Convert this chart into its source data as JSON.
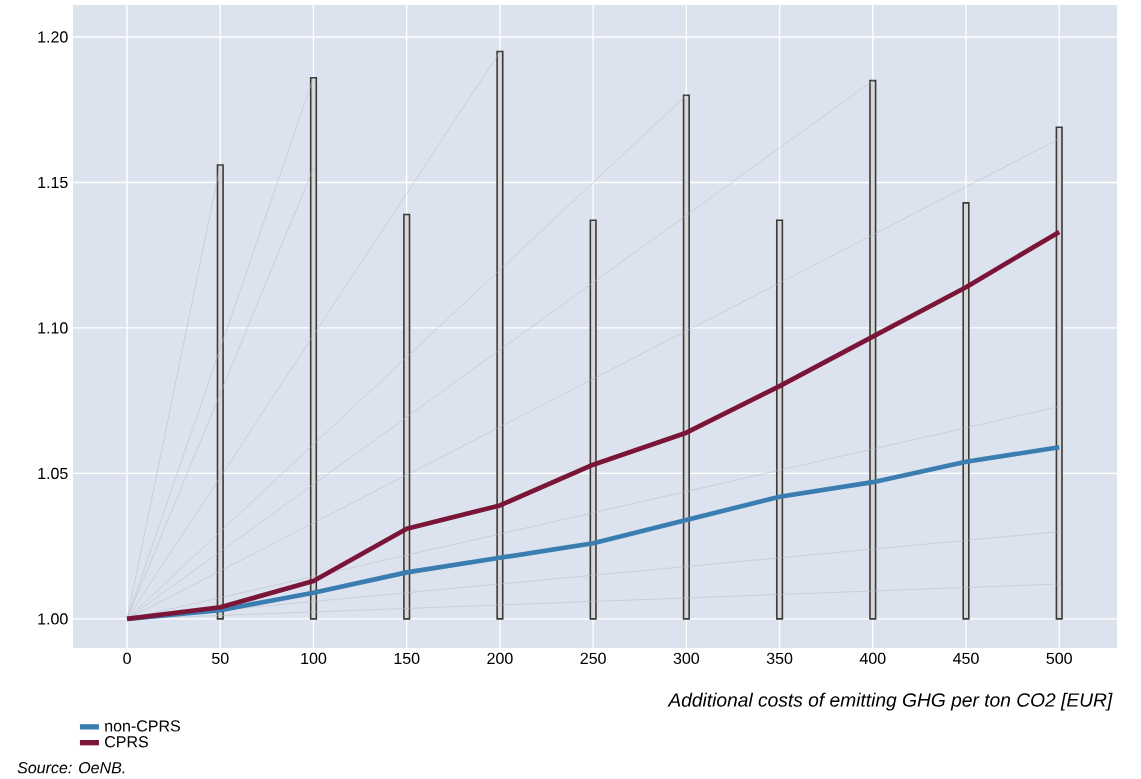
{
  "chart_data": {
    "type": "line",
    "xlabel": "Additional costs of emitting GHG per ton CO2 [EUR]",
    "annotations": [
      "Source: OeNB."
    ],
    "xlim": [
      -29,
      531
    ],
    "ylim": [
      0.99,
      1.211
    ],
    "xticks": [
      0,
      50,
      100,
      150,
      200,
      250,
      300,
      350,
      400,
      450,
      500
    ],
    "yticks": [
      {
        "value": 1.0,
        "label": "1.00"
      },
      {
        "value": 1.05,
        "label": "1.05"
      },
      {
        "value": 1.1,
        "label": "1.10"
      },
      {
        "value": 1.15,
        "label": "1.15"
      },
      {
        "value": 1.2,
        "label": "1.20"
      }
    ],
    "grid": true,
    "legend": "bottom left",
    "series": [
      {
        "type": "bar",
        "color": "#3a3a3a",
        "x": [
          50,
          100,
          150,
          200,
          250,
          300,
          350,
          400,
          450,
          500
        ],
        "base": [
          1.0,
          1.0,
          1.0,
          1.0,
          1.0,
          1.0,
          1.0,
          1.0,
          1.0,
          1.0
        ],
        "values": [
          0.156,
          0.186,
          0.139,
          0.195,
          0.137,
          0.18,
          0.137,
          0.185,
          0.143,
          0.169
        ]
      },
      {
        "color": "#b8bcc4",
        "x": [
          0,
          50
        ],
        "values": [
          1.0,
          1.156
        ]
      },
      {
        "color": "#b8bcc4",
        "x": [
          0,
          100
        ],
        "values": [
          1.0,
          1.186
        ]
      },
      {
        "color": "#b8bcc4",
        "x": [
          0,
          100
        ],
        "values": [
          1.0,
          1.155
        ]
      },
      {
        "color": "#b8bcc4",
        "x": [
          0,
          200
        ],
        "values": [
          1.0,
          1.195
        ]
      },
      {
        "color": "#b8bcc4",
        "x": [
          0,
          300
        ],
        "values": [
          1.0,
          1.18
        ]
      },
      {
        "color": "#b8bcc4",
        "x": [
          0,
          400
        ],
        "values": [
          1.0,
          1.185
        ]
      },
      {
        "color": "#b8bcc4",
        "x": [
          0,
          500
        ],
        "values": [
          1.0,
          1.165
        ]
      },
      {
        "color": "#b8bcc4",
        "x": [
          0,
          500
        ],
        "values": [
          1.0,
          1.073
        ]
      },
      {
        "color": "#b8bcc4",
        "x": [
          0,
          500
        ],
        "values": [
          1.0,
          1.03
        ]
      },
      {
        "color": "#b8bcc4",
        "x": [
          0,
          500
        ],
        "values": [
          1.0,
          1.012
        ]
      },
      {
        "name": "non-CPRS",
        "color": "#3a7db0",
        "x": [
          0,
          50,
          100,
          150,
          200,
          250,
          300,
          350,
          400,
          450,
          500
        ],
        "values": [
          1.0,
          1.003,
          1.009,
          1.016,
          1.021,
          1.026,
          1.034,
          1.042,
          1.047,
          1.054,
          1.059
        ]
      },
      {
        "name": "CPRS",
        "color": "#7b1538",
        "x": [
          0,
          50,
          100,
          150,
          200,
          250,
          300,
          350,
          400,
          450,
          500
        ],
        "values": [
          1.0,
          1.004,
          1.013,
          1.031,
          1.039,
          1.053,
          1.064,
          1.08,
          1.097,
          1.114,
          1.133
        ]
      }
    ]
  }
}
